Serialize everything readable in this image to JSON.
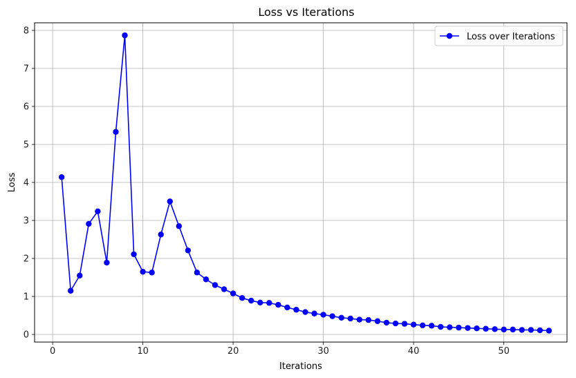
{
  "chart_data": {
    "type": "line",
    "title": "Loss vs Iterations",
    "xlabel": "Iterations",
    "ylabel": "Loss",
    "xlim": [
      -2,
      57
    ],
    "ylim": [
      -0.2,
      8.2
    ],
    "xticks": [
      0,
      10,
      20,
      30,
      40,
      50
    ],
    "yticks": [
      0,
      1,
      2,
      3,
      4,
      5,
      6,
      7,
      8
    ],
    "grid": true,
    "legend_position": "top-right",
    "series": [
      {
        "name": "Loss over Iterations",
        "color": "#0000ff",
        "marker": "circle",
        "x": [
          1,
          2,
          3,
          4,
          5,
          6,
          7,
          8,
          9,
          10,
          11,
          12,
          13,
          14,
          15,
          16,
          17,
          18,
          19,
          20,
          21,
          22,
          23,
          24,
          25,
          26,
          27,
          28,
          29,
          30,
          31,
          32,
          33,
          34,
          35,
          36,
          37,
          38,
          39,
          40,
          41,
          42,
          43,
          44,
          45,
          46,
          47,
          48,
          49,
          50,
          51,
          52,
          53,
          54,
          55
        ],
        "y": [
          4.14,
          1.15,
          1.55,
          2.91,
          3.24,
          1.89,
          5.33,
          7.87,
          2.11,
          1.65,
          1.63,
          2.63,
          3.5,
          2.85,
          2.21,
          1.63,
          1.45,
          1.3,
          1.19,
          1.08,
          0.96,
          0.89,
          0.84,
          0.83,
          0.78,
          0.71,
          0.65,
          0.59,
          0.55,
          0.52,
          0.48,
          0.44,
          0.42,
          0.39,
          0.38,
          0.35,
          0.31,
          0.29,
          0.28,
          0.26,
          0.24,
          0.23,
          0.2,
          0.19,
          0.18,
          0.17,
          0.16,
          0.15,
          0.14,
          0.13,
          0.13,
          0.12,
          0.12,
          0.11,
          0.1
        ]
      }
    ]
  }
}
